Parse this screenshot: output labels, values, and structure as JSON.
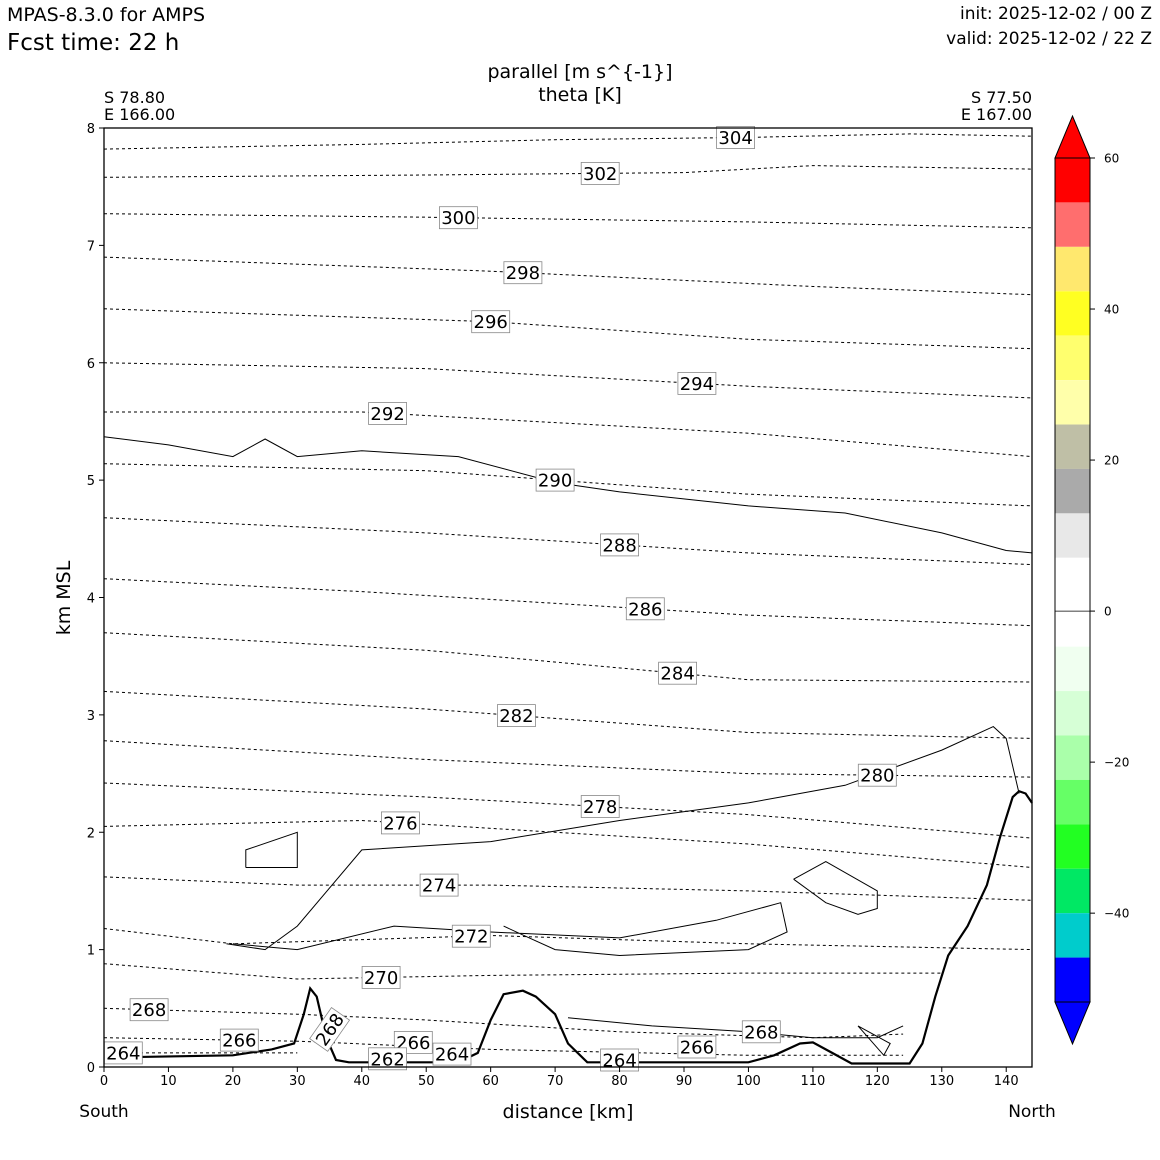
{
  "header": {
    "model": "MPAS-8.3.0 for AMPS",
    "fcst_label": "Fcst time:",
    "fcst_value": "22 h",
    "init": "init: 2025-12-02 / 00 Z",
    "valid": "valid: 2025-12-02 / 22 Z"
  },
  "chart_data": {
    "type": "cross-section",
    "title": "parallel [m s^{-1}]",
    "subtitle": "theta [K]",
    "xlabel": "distance [km]",
    "ylabel": "km MSL",
    "xlim": [
      0,
      144
    ],
    "ylim": [
      0,
      8
    ],
    "x_ticks": [
      0,
      10,
      20,
      30,
      40,
      50,
      60,
      70,
      80,
      90,
      100,
      110,
      120,
      130,
      140
    ],
    "y_ticks": [
      0,
      1,
      2,
      3,
      4,
      5,
      6,
      7,
      8
    ],
    "endpoints": {
      "start": {
        "lat": "S 78.80",
        "lon": "E 166.00",
        "label": "South"
      },
      "end": {
        "lat": "S 77.50",
        "lon": "E 167.00",
        "label": "North"
      }
    },
    "terrain": {
      "x": [
        0,
        20,
        26,
        29.5,
        31,
        32,
        33,
        34.5,
        36,
        38,
        43,
        55,
        58,
        60,
        62,
        65,
        67,
        70,
        72,
        75,
        100,
        104,
        108,
        110,
        113,
        116,
        125,
        127,
        129,
        131,
        134,
        137,
        139,
        141,
        142,
        143,
        144
      ],
      "y": [
        0.08,
        0.1,
        0.15,
        0.2,
        0.45,
        0.67,
        0.6,
        0.25,
        0.06,
        0.04,
        0.04,
        0.04,
        0.12,
        0.4,
        0.62,
        0.65,
        0.6,
        0.45,
        0.2,
        0.04,
        0.04,
        0.1,
        0.2,
        0.21,
        0.12,
        0.03,
        0.03,
        0.2,
        0.6,
        0.95,
        1.2,
        1.55,
        1.95,
        2.3,
        2.35,
        2.33,
        2.25
      ]
    },
    "theta_contours": [
      {
        "value": 304,
        "x": [
          0,
          40,
          70,
          100,
          125,
          144
        ],
        "y": [
          7.82,
          7.86,
          7.9,
          7.92,
          7.95,
          7.93
        ],
        "label": "304",
        "label_x": 98
      },
      {
        "value": 302,
        "x": [
          0,
          50,
          90,
          110,
          144
        ],
        "y": [
          7.58,
          7.6,
          7.62,
          7.68,
          7.65
        ],
        "label": "302",
        "label_x": 77
      },
      {
        "value": 300,
        "x": [
          0,
          50,
          100,
          144
        ],
        "y": [
          7.27,
          7.24,
          7.2,
          7.15
        ],
        "label": "300",
        "label_x": 55
      },
      {
        "value": 298,
        "x": [
          0,
          60,
          110,
          144
        ],
        "y": [
          6.9,
          6.78,
          6.65,
          6.58
        ],
        "label": "298",
        "label_x": 65
      },
      {
        "value": 296,
        "x": [
          0,
          60,
          100,
          144
        ],
        "y": [
          6.46,
          6.35,
          6.2,
          6.12
        ],
        "label": "296",
        "label_x": 60
      },
      {
        "value": 294,
        "x": [
          0,
          50,
          100,
          144
        ],
        "y": [
          6.0,
          5.95,
          5.8,
          5.7
        ],
        "label": "294",
        "label_x": 92
      },
      {
        "value": 292,
        "x": [
          0,
          40,
          100,
          144
        ],
        "y": [
          5.58,
          5.58,
          5.4,
          5.2
        ],
        "label": "292",
        "label_x": 44
      },
      {
        "value": 290,
        "x": [
          0,
          50,
          100,
          144
        ],
        "y": [
          5.14,
          5.08,
          4.88,
          4.78
        ],
        "label": "290",
        "label_x": 70
      },
      {
        "value": 288,
        "x": [
          0,
          50,
          100,
          144
        ],
        "y": [
          4.68,
          4.55,
          4.38,
          4.28
        ],
        "label": "288",
        "label_x": 80
      },
      {
        "value": 286,
        "x": [
          0,
          40,
          100,
          144
        ],
        "y": [
          4.16,
          4.05,
          3.85,
          3.76
        ],
        "label": "286",
        "label_x": 84
      },
      {
        "value": 284,
        "x": [
          0,
          50,
          100,
          144
        ],
        "y": [
          3.7,
          3.55,
          3.3,
          3.28
        ],
        "label": "284",
        "label_x": 89
      },
      {
        "value": 282,
        "x": [
          0,
          50,
          100,
          144
        ],
        "y": [
          3.2,
          3.05,
          2.85,
          2.8
        ],
        "label": "282",
        "label_x": 64
      },
      {
        "value": 280,
        "x": [
          0,
          50,
          100,
          144
        ],
        "y": [
          2.78,
          2.62,
          2.5,
          2.47
        ],
        "label": "280",
        "label_x": 120
      },
      {
        "value": 278,
        "x": [
          0,
          50,
          100,
          144
        ],
        "y": [
          2.42,
          2.3,
          2.15,
          1.95
        ],
        "label": "278",
        "label_x": 77
      },
      {
        "value": 276,
        "x": [
          0,
          40,
          100,
          144
        ],
        "y": [
          2.05,
          2.1,
          1.9,
          1.7
        ],
        "label": "276",
        "label_x": 46
      },
      {
        "value": 274,
        "x": [
          0,
          30,
          60,
          100,
          144
        ],
        "y": [
          1.62,
          1.55,
          1.55,
          1.5,
          1.42
        ],
        "label": "274",
        "label_x": 52
      },
      {
        "value": 272,
        "x": [
          0,
          20,
          60,
          100,
          144
        ],
        "y": [
          1.18,
          1.05,
          1.12,
          1.05,
          1.0
        ],
        "label": "272",
        "label_x": 57
      },
      {
        "value": 270,
        "x": [
          0,
          30,
          60,
          100,
          130
        ],
        "y": [
          0.88,
          0.75,
          0.78,
          0.8,
          0.8
        ],
        "label": "270",
        "label_x": 43
      },
      {
        "value": 268,
        "x": [
          0,
          30,
          50,
          80,
          110,
          124
        ],
        "y": [
          0.5,
          0.45,
          0.4,
          0.3,
          0.25,
          0.28
        ],
        "label": "268",
        "label_x": 7
      },
      {
        "value": 266,
        "x": [
          0,
          30,
          60,
          100,
          124
        ],
        "y": [
          0.25,
          0.22,
          0.15,
          0.1,
          0.1
        ],
        "label": "266",
        "label_x": 21
      },
      {
        "value": 264,
        "x": [
          0,
          30
        ],
        "y": [
          0.12,
          0.12
        ],
        "label": "264",
        "label_x": 3
      }
    ],
    "extra_labels": [
      {
        "text": "268",
        "x": 35,
        "y": 0.32,
        "rot": -55
      },
      {
        "text": "266",
        "x": 48,
        "y": 0.21
      },
      {
        "text": "262",
        "x": 44,
        "y": 0.07
      },
      {
        "text": "264",
        "x": 54,
        "y": 0.11
      },
      {
        "text": "264",
        "x": 80,
        "y": 0.06
      },
      {
        "text": "266",
        "x": 92,
        "y": 0.17
      },
      {
        "text": "268",
        "x": 102,
        "y": 0.3
      }
    ],
    "wind_contours": [
      {
        "x": [
          0,
          10,
          20,
          25,
          30,
          40,
          55,
          70,
          80,
          100,
          115,
          130,
          140,
          144
        ],
        "y": [
          5.37,
          5.3,
          5.2,
          5.35,
          5.2,
          5.25,
          5.2,
          4.98,
          4.9,
          4.78,
          4.72,
          4.55,
          4.4,
          4.38
        ]
      },
      {
        "x": [
          19,
          25,
          30,
          40,
          60,
          80,
          100,
          105,
          115,
          130,
          138,
          140,
          142
        ],
        "y": [
          1.05,
          1.0,
          1.2,
          1.85,
          1.92,
          2.1,
          2.25,
          2.3,
          2.4,
          2.7,
          2.9,
          2.8,
          2.33
        ]
      },
      {
        "x": [
          22,
          30,
          30,
          22,
          22
        ],
        "y": [
          1.7,
          1.7,
          2.0,
          1.85,
          1.7
        ]
      },
      {
        "x": [
          20,
          30,
          45,
          60,
          80,
          95,
          105,
          106,
          100,
          80,
          70,
          66,
          62
        ],
        "y": [
          1.05,
          1.0,
          1.2,
          1.15,
          1.1,
          1.25,
          1.4,
          1.15,
          1.0,
          0.95,
          1.0,
          1.1,
          1.2
        ]
      },
      {
        "x": [
          107,
          112,
          120,
          120,
          117,
          112,
          107
        ],
        "y": [
          1.6,
          1.75,
          1.5,
          1.35,
          1.3,
          1.4,
          1.6
        ]
      },
      {
        "x": [
          72,
          85,
          100,
          110,
          120,
          124
        ],
        "y": [
          0.42,
          0.35,
          0.3,
          0.25,
          0.25,
          0.35
        ]
      },
      {
        "x": [
          117,
          122,
          121,
          117
        ],
        "y": [
          0.35,
          0.2,
          0.1,
          0.35
        ]
      }
    ],
    "colorbar": {
      "ticks": [
        60,
        40,
        20,
        0,
        -20,
        -40
      ],
      "tick_labels": [
        "60",
        "40",
        "20",
        "0",
        "−20",
        "−40"
      ],
      "colors": [
        "#ff0000",
        "#ff6e6e",
        "#ffe86e",
        "#ffff22",
        "#ffff6e",
        "#ffffaa",
        "#bfbfa6",
        "#aaaaaa",
        "#e8e8e8",
        "#ffffff",
        "#ffffff",
        "#f0fff0",
        "#d6ffd6",
        "#aaffaa",
        "#66ff66",
        "#22ff22",
        "#00e864",
        "#00cccc",
        "#0000ff"
      ],
      "over_color": "#ff0000",
      "under_color": "#0000ff"
    }
  }
}
